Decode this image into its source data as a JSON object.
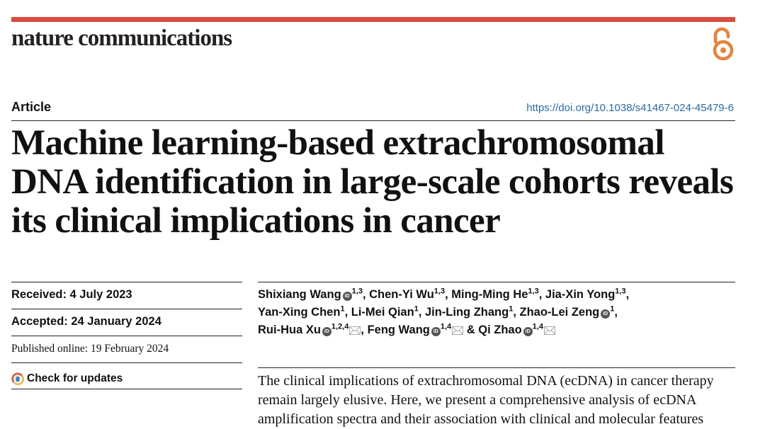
{
  "journal": "nature communications",
  "article_type": "Article",
  "doi": "https://doi.org/10.1038/s41467-024-45479-6",
  "title": "Machine learning-based extrachromosomal DNA identification in large-scale cohorts reveals its clinical implications in cancer",
  "dates": {
    "received": "Received: 4 July 2023",
    "accepted": "Accepted: 24 January 2024",
    "published": "Published online: 19 February 2024"
  },
  "check_updates": "Check for updates",
  "authors": [
    {
      "name": "Shixiang Wang",
      "aff": "1,3",
      "orcid": true,
      "mail": false
    },
    {
      "name": "Chen-Yi Wu",
      "aff": "1,3",
      "orcid": false,
      "mail": false
    },
    {
      "name": "Ming-Ming He",
      "aff": "1,3",
      "orcid": false,
      "mail": false
    },
    {
      "name": "Jia-Xin Yong",
      "aff": "1,3",
      "orcid": false,
      "mail": false
    },
    {
      "name": "Yan-Xing Chen",
      "aff": "1",
      "orcid": false,
      "mail": false
    },
    {
      "name": "Li-Mei Qian",
      "aff": "1",
      "orcid": false,
      "mail": false
    },
    {
      "name": "Jin-Ling Zhang",
      "aff": "1",
      "orcid": false,
      "mail": false
    },
    {
      "name": "Zhao-Lei Zeng",
      "aff": "1",
      "orcid": true,
      "mail": false
    },
    {
      "name": "Rui-Hua Xu",
      "aff": "1,2,4",
      "orcid": true,
      "mail": true
    },
    {
      "name": "Feng Wang",
      "aff": "1,4",
      "orcid": true,
      "mail": true
    },
    {
      "name": "Qi Zhao",
      "aff": "1,4",
      "orcid": true,
      "mail": true
    }
  ],
  "abstract": "The clinical implications of extrachromosomal DNA (ecDNA) in cancer therapy remain largely elusive. Here, we present a comprehensive analysis of ecDNA amplification spectra and their association with clinical and molecular features",
  "colors": {
    "accent_bar": "#d94c3e",
    "oa_icon": "#e8813a",
    "link": "#2a6aa8"
  },
  "icons": {
    "open_access": "open-access-icon",
    "orcid": "orcid-icon",
    "mail": "mail-icon",
    "updates": "check-updates-icon"
  }
}
